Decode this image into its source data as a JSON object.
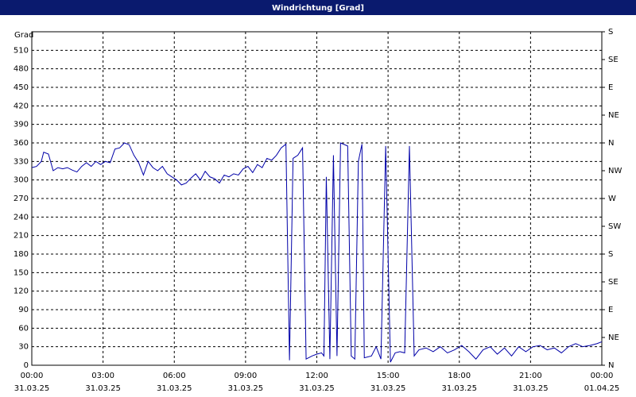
{
  "chart_data": {
    "type": "line",
    "title": "Windrichtung [Grad]",
    "ylabel": "Grad",
    "x": [
      0,
      0.2,
      0.4,
      0.5,
      0.7,
      0.9,
      1.1,
      1.3,
      1.5,
      1.7,
      1.9,
      2.1,
      2.3,
      2.5,
      2.7,
      2.9,
      3.1,
      3.3,
      3.5,
      3.7,
      3.9,
      4.1,
      4.3,
      4.5,
      4.7,
      4.9,
      5.1,
      5.3,
      5.5,
      5.7,
      5.9,
      6.1,
      6.3,
      6.5,
      6.7,
      6.9,
      7.1,
      7.3,
      7.5,
      7.7,
      7.9,
      8.1,
      8.3,
      8.5,
      8.7,
      8.9,
      9.1,
      9.3,
      9.5,
      9.7,
      9.9,
      10.1,
      10.3,
      10.5,
      10.7,
      10.85,
      11.0,
      11.2,
      11.4,
      11.55,
      11.8,
      12.0,
      12.2,
      12.3,
      12.4,
      12.55,
      12.7,
      12.85,
      13.0,
      13.3,
      13.45,
      13.6,
      13.75,
      13.9,
      14.0,
      14.3,
      14.5,
      14.7,
      14.9,
      15.1,
      15.3,
      15.5,
      15.7,
      15.9,
      16.1,
      16.3,
      16.6,
      16.9,
      17.2,
      17.5,
      17.8,
      18.1,
      18.4,
      18.7,
      19.0,
      19.3,
      19.6,
      19.9,
      20.2,
      20.5,
      20.8,
      21.1,
      21.4,
      21.7,
      22.0,
      22.3,
      22.6,
      22.9,
      23.2,
      23.5,
      23.8,
      24.0
    ],
    "series": [
      {
        "name": "Windrichtung",
        "color": "#0000a8",
        "values": [
          320,
          322,
          330,
          345,
          342,
          315,
          320,
          318,
          320,
          316,
          313,
          322,
          328,
          322,
          330,
          325,
          330,
          328,
          350,
          352,
          360,
          357,
          340,
          328,
          308,
          330,
          320,
          315,
          322,
          310,
          305,
          300,
          292,
          295,
          303,
          310,
          300,
          314,
          305,
          302,
          295,
          308,
          305,
          310,
          308,
          318,
          322,
          312,
          325,
          320,
          335,
          332,
          340,
          352,
          358,
          8,
          335,
          340,
          352,
          10,
          15,
          18,
          20,
          15,
          305,
          10,
          340,
          15,
          360,
          355,
          15,
          10,
          330,
          358,
          12,
          15,
          30,
          10,
          355,
          5,
          20,
          22,
          20,
          355,
          15,
          25,
          28,
          22,
          30,
          20,
          25,
          32,
          22,
          10,
          25,
          30,
          18,
          28,
          15,
          30,
          22,
          30,
          32,
          25,
          28,
          20,
          30,
          35,
          30,
          32,
          35,
          38
        ]
      }
    ],
    "xlim": [
      0,
      24
    ],
    "xticks": [
      {
        "value": 0,
        "label": [
          "00:00",
          "31.03.25"
        ]
      },
      {
        "value": 3,
        "label": [
          "03:00",
          "31.03.25"
        ]
      },
      {
        "value": 6,
        "label": [
          "06:00",
          "31.03.25"
        ]
      },
      {
        "value": 9,
        "label": [
          "09:00",
          "31.03.25"
        ]
      },
      {
        "value": 12,
        "label": [
          "12:00",
          "31.03.25"
        ]
      },
      {
        "value": 15,
        "label": [
          "15:00",
          "31.03.25"
        ]
      },
      {
        "value": 18,
        "label": [
          "18:00",
          "31.03.25"
        ]
      },
      {
        "value": 21,
        "label": [
          "21:00",
          "31.03.25"
        ]
      },
      {
        "value": 24,
        "label": [
          "00:00",
          "01.04.25"
        ]
      }
    ],
    "ylim": [
      0,
      540
    ],
    "yticks": [
      0,
      30,
      60,
      90,
      120,
      150,
      180,
      210,
      240,
      270,
      300,
      330,
      360,
      390,
      420,
      450,
      480,
      510
    ],
    "y2lim": [
      0,
      540
    ],
    "y2ticks": [
      {
        "value": 0,
        "label": "N"
      },
      {
        "value": 45,
        "label": "NE"
      },
      {
        "value": 90,
        "label": "E"
      },
      {
        "value": 135,
        "label": "SE"
      },
      {
        "value": 180,
        "label": "S"
      },
      {
        "value": 225,
        "label": "SW"
      },
      {
        "value": 270,
        "label": "W"
      },
      {
        "value": 315,
        "label": "NW"
      },
      {
        "value": 360,
        "label": "N"
      },
      {
        "value": 405,
        "label": "NE"
      },
      {
        "value": 450,
        "label": "E"
      },
      {
        "value": 495,
        "label": "SE"
      },
      {
        "value": 540,
        "label": "S"
      }
    ],
    "grid": true
  }
}
